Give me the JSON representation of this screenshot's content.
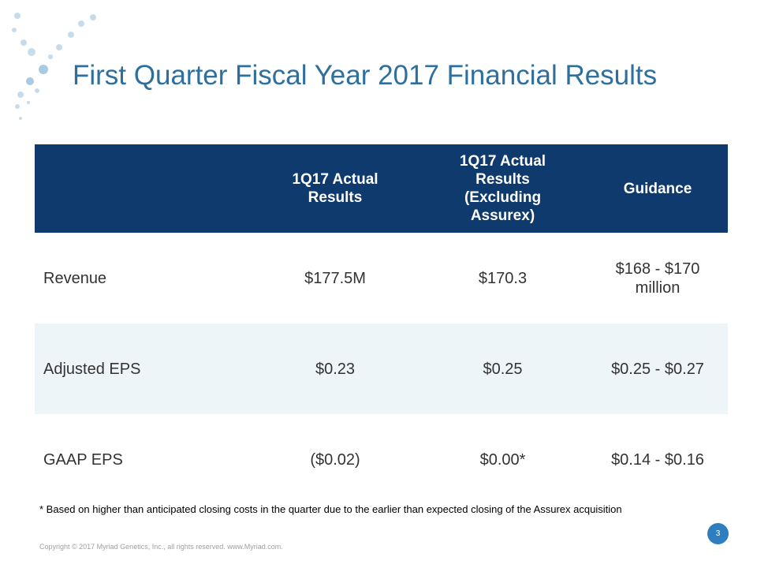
{
  "title": "First Quarter Fiscal Year 2017 Financial Results",
  "table": {
    "header": [
      "1Q17 Actual Results",
      "1Q17 Actual Results (Excluding Assurex)",
      "Guidance"
    ],
    "rows": [
      [
        "Revenue",
        "$177.5M",
        "$170.3",
        "$168 - $170 million"
      ],
      [
        "Adjusted EPS",
        "$0.23",
        "$0.25",
        "$0.25 - $0.27"
      ],
      [
        "GAAP EPS",
        "($0.02)",
        "$0.00*",
        "$0.14 - $0.16"
      ]
    ]
  },
  "footnote": "* Based on higher than anticipated closing costs in the quarter due to the earlier than expected closing of the Assurex acquisition",
  "footer": "Copyright © 2017 Myriad Genetics, Inc., all rights reserved.  www.Myriad.com.",
  "page_number": "3"
}
